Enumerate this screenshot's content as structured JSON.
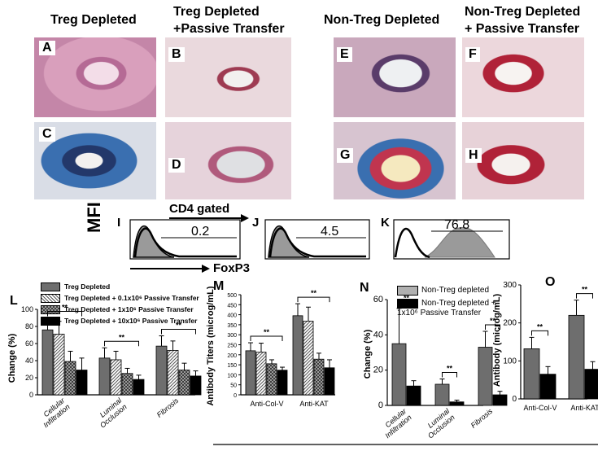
{
  "headers": {
    "treg_depleted": "Treg Depleted",
    "treg_depleted_pt_line1": "Treg Depleted",
    "treg_depleted_pt_line2": "+Passive Transfer",
    "non_treg_depleted": "Non-Treg Depleted",
    "non_treg_pt_line1": "Non-Treg Depleted",
    "non_treg_pt_line2": "+ Passive Transfer"
  },
  "panel_letters": [
    "A",
    "B",
    "C",
    "D",
    "E",
    "F",
    "G",
    "H"
  ],
  "flow": {
    "title": "CD4 gated",
    "ylabel": "MFI",
    "xlabel": "FoxP3",
    "panels": [
      {
        "letter": "I",
        "value": "0.2"
      },
      {
        "letter": "J",
        "value": "4.5"
      },
      {
        "letter": "K",
        "value": "76.8"
      }
    ]
  },
  "colors": {
    "dark_gray": "#6e6e6e",
    "light_gray": "#b0b0b0",
    "black": "#000000",
    "he_stain": "#c98aa8",
    "trichrome_blue": "#3a6fb0",
    "tissue_red": "#b02238"
  },
  "chart_data": [
    {
      "panel": "L",
      "type": "bar",
      "ylabel": "Change (%)",
      "ylim": [
        0,
        100
      ],
      "yticks": [
        0,
        20,
        40,
        60,
        80,
        100
      ],
      "categories": [
        "Cellular Infiltration",
        "Luminal Occlusion",
        "Fibrosis"
      ],
      "series": [
        {
          "name": "Treg Depleted",
          "values": [
            76,
            43,
            57
          ],
          "errors": [
            14,
            12,
            12
          ]
        },
        {
          "name": "Treg Depleted + 0.1x10⁶ Passive Transfer",
          "values": [
            71,
            41,
            52
          ],
          "errors": [
            15,
            10,
            11
          ]
        },
        {
          "name": "Treg Depleted + 1x10⁶ Passive Transfer",
          "values": [
            39,
            25,
            29
          ],
          "errors": [
            12,
            6,
            8
          ]
        },
        {
          "name": "Treg Depleted + 10x10⁶ Passive Transfer",
          "values": [
            29,
            18,
            22
          ],
          "errors": [
            14,
            5,
            6
          ]
        }
      ],
      "significance": "**"
    },
    {
      "panel": "M",
      "type": "bar",
      "ylabel": "Antibody Titers (microg/mL)",
      "ylim": [
        0,
        500
      ],
      "yticks": [
        0,
        50,
        100,
        150,
        200,
        250,
        300,
        350,
        400,
        450,
        500
      ],
      "categories": [
        "Anti-Col-V",
        "Anti-KAT"
      ],
      "series": [
        {
          "values": [
            220,
            395
          ],
          "errors": [
            40,
            60
          ]
        },
        {
          "values": [
            213,
            368
          ],
          "errors": [
            45,
            70
          ]
        },
        {
          "values": [
            155,
            178
          ],
          "errors": [
            20,
            30
          ]
        },
        {
          "values": [
            123,
            135
          ],
          "errors": [
            15,
            40
          ]
        }
      ],
      "significance": "**"
    },
    {
      "panel": "N",
      "type": "bar",
      "ylabel": "Change (%)",
      "ylim": [
        0,
        60
      ],
      "yticks": [
        0,
        20,
        40,
        60
      ],
      "categories": [
        "Cellular Infiltration",
        "Luminal Occlusion",
        "Fibrosis"
      ],
      "series": [
        {
          "name": "Non-Treg depleted",
          "values": [
            35,
            12,
            33
          ],
          "errors": [
            20,
            3,
            9
          ]
        },
        {
          "name": "Non-Treg depleted + 1x10⁶ Passive Transfer",
          "values": [
            11,
            2,
            6
          ],
          "errors": [
            3,
            1,
            2
          ]
        }
      ],
      "significance": "**"
    },
    {
      "panel": "O",
      "type": "bar",
      "ylabel": "Antibody (microg/mL)",
      "ylim": [
        0,
        300
      ],
      "yticks": [
        0,
        100,
        200,
        300
      ],
      "categories": [
        "Anti-Col-V",
        "Anti-KAT"
      ],
      "series": [
        {
          "values": [
            132,
            220
          ],
          "errors": [
            30,
            40
          ]
        },
        {
          "values": [
            65,
            78
          ],
          "errors": [
            20,
            20
          ]
        }
      ],
      "significance": "**"
    }
  ]
}
